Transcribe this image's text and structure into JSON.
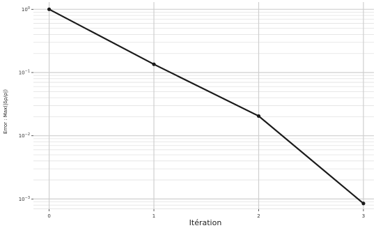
{
  "chart_data": {
    "type": "line",
    "title": "",
    "xlabel": "Itération",
    "ylabel": "Error : Max(|δρ/ρ|)",
    "x": [
      0,
      1,
      2,
      3
    ],
    "series": [
      {
        "values": [
          1.0,
          0.135,
          0.0205,
          0.00085
        ]
      }
    ],
    "xlim": [
      -0.15,
      3.1
    ],
    "ylim": [
      0.00069,
      1.3
    ],
    "yscale": "log",
    "x_ticks": [
      "0",
      "1",
      "2",
      "3"
    ],
    "y_ticks": [
      {
        "value": 1,
        "base": "10",
        "exp": "0"
      },
      {
        "value": 0.1,
        "base": "10",
        "exp": "−1"
      },
      {
        "value": 0.01,
        "base": "10",
        "exp": "−2"
      },
      {
        "value": 0.001,
        "base": "10",
        "exp": "−3"
      }
    ],
    "grid": true,
    "legend": "none",
    "colors": {
      "line": "#1a1a1a",
      "grid_major": "#cfcfcf",
      "grid_minor": "#e2e2e2"
    }
  }
}
